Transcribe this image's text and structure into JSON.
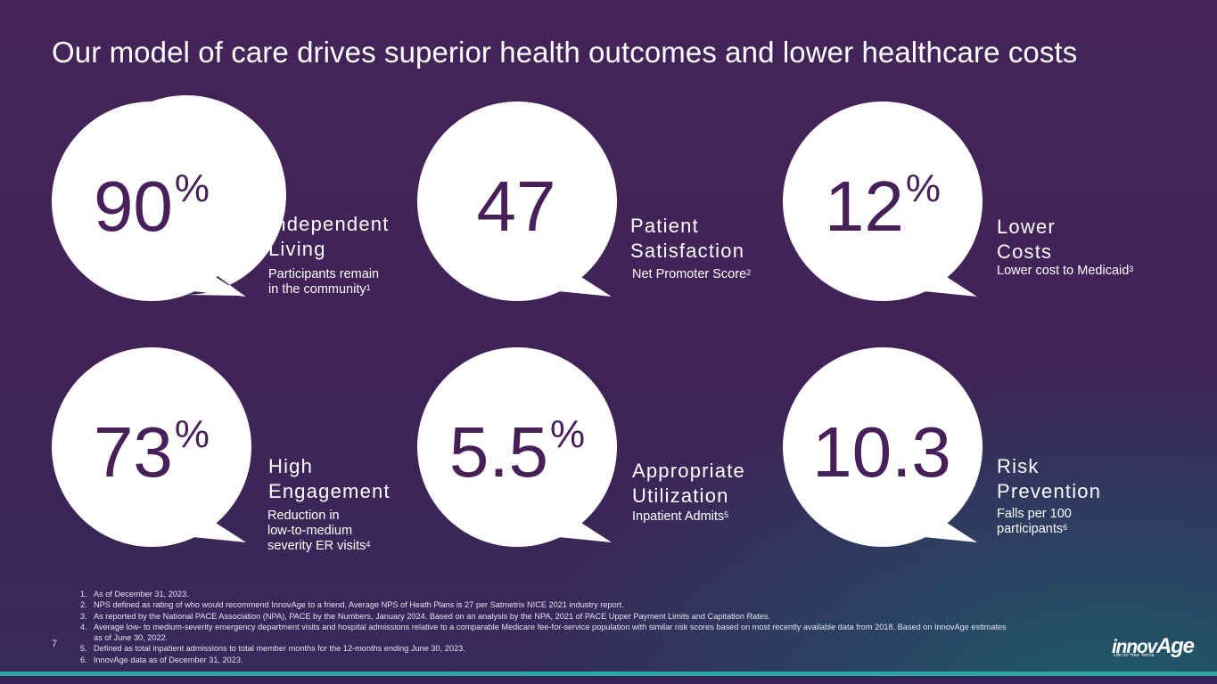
{
  "title": "Our model of care drives superior health outcomes and lower healthcare costs",
  "stats": [
    {
      "value": "90",
      "suffix": "%",
      "label_line1": "Independent",
      "label_line2": "Living",
      "desc_line1": "Participants remain",
      "desc_line2": "in the community",
      "desc_line3": "",
      "footnote_ref": "1"
    },
    {
      "value": "47",
      "suffix": "",
      "label_line1": "Patient",
      "label_line2": "Satisfaction",
      "desc_line1": "Net Promoter Score",
      "desc_line2": "",
      "desc_line3": "",
      "footnote_ref": "2"
    },
    {
      "value": "12",
      "suffix": "%",
      "label_line1": "Lower",
      "label_line2": "Costs",
      "desc_line1": "Lower cost to Medicaid",
      "desc_line2": "",
      "desc_line3": "",
      "footnote_ref": "3"
    },
    {
      "value": "73",
      "suffix": "%",
      "label_line1": "High",
      "label_line2": "Engagement",
      "desc_line1": "Reduction in",
      "desc_line2": "low-to-medium",
      "desc_line3": "severity ER visits",
      "footnote_ref": "4"
    },
    {
      "value": "5.5",
      "suffix": "%",
      "label_line1": "Appropriate",
      "label_line2": "Utilization",
      "desc_line1": "Inpatient Admits",
      "desc_line2": "",
      "desc_line3": "",
      "footnote_ref": "5"
    },
    {
      "value": "10.3",
      "suffix": "",
      "label_line1": "Risk",
      "label_line2": "Prevention",
      "desc_line1": "Falls per 100",
      "desc_line2": "participants",
      "desc_line3": "",
      "footnote_ref": "6"
    }
  ],
  "footnotes": [
    {
      "num": "1.",
      "text": "As of December 31, 2023."
    },
    {
      "num": "2.",
      "text": "NPS defined as rating of who would recommend InnovAge to a friend.  Average NPS of Heath Plans is 27 per Satmetrix NICE 2021 industry report."
    },
    {
      "num": "3.",
      "text": "As reported by the National PACE Association (NPA), PACE by the Numbers, January 2024. Based on an analysis by the NPA, 2021 of PACE Upper Payment Limits and Capitation Rates."
    },
    {
      "num": "4.",
      "text": "Average low- to medium-severity emergency department visits and hospital admissions relative to a comparable Medicare fee-for-service population with similar risk scores based on most recently available data from 2018. Based on InnovAge estimates as of June 30, 2022."
    },
    {
      "num": "5.",
      "text": "Defined as total inpatient admissions to total member months for the 12-months ending June 30, 2023."
    },
    {
      "num": "6.",
      "text": "InnovAge data as of December 31, 2023."
    }
  ],
  "page_number": "7",
  "logo": {
    "word_small": "innov",
    "word_big": "Age",
    "tagline": "Life on Your Terms"
  },
  "colors": {
    "stat_text": "#47205a",
    "accent_bar": "#2aa8a3",
    "background": "#442459"
  }
}
